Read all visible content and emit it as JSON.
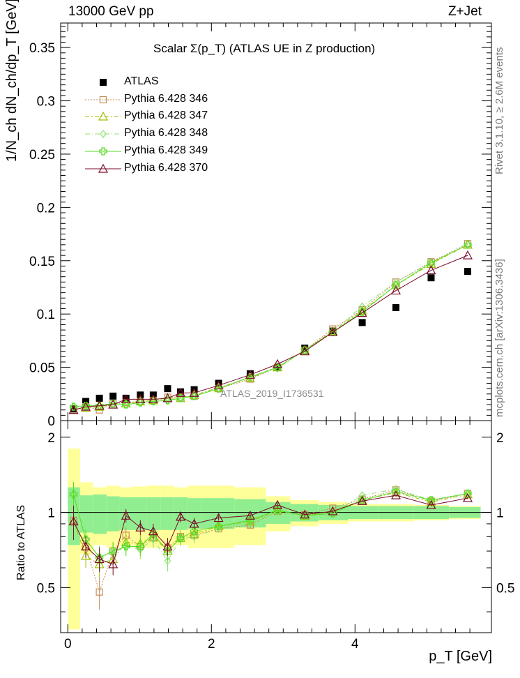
{
  "header": {
    "left": "13000 GeV pp",
    "right": "Z+Jet"
  },
  "side_labels": {
    "rivet": "Rivet 3.1.10, ≥ 2.6M events",
    "mcplots": "mcplots.cern.ch [arXiv:1306.3436]"
  },
  "watermark": "ATLAS_2019_I1736531",
  "chart_data": {
    "type": "scatter",
    "title": "Scalar Σ(p_T) (ATLAS UE in Z production)",
    "xlabel": "p_T [GeV]",
    "ylabel": "1/N_ch dN_ch/dp_T [GeV]",
    "ratio_ylabel": "Ratio to ATLAS",
    "xlim": [
      -0.1,
      5.9
    ],
    "ylim": [
      0,
      0.373
    ],
    "ratio_ylim": [
      0.33,
      2.33
    ],
    "grid": false,
    "legend_placement": "top-left",
    "x_ticks": [
      "0",
      "2",
      "4"
    ],
    "y_ticks": [
      "0",
      "0.05",
      "0.1",
      "0.15",
      "0.2",
      "0.25",
      "0.3",
      "0.35"
    ],
    "ratio_ticks": [
      "0.5",
      "1",
      "2"
    ],
    "x": [
      0.08,
      0.25,
      0.44,
      0.63,
      0.81,
      1.01,
      1.19,
      1.39,
      1.57,
      1.76,
      2.1,
      2.54,
      2.92,
      3.3,
      3.69,
      4.1,
      4.57,
      5.06,
      5.57
    ],
    "series": [
      {
        "name": "ATLAS",
        "color": "#000000",
        "marker": "square",
        "dash": "none",
        "values": [
          0.011,
          0.018,
          0.021,
          0.023,
          0.021,
          0.024,
          0.024,
          0.03,
          0.027,
          0.029,
          0.035,
          0.044,
          0.05,
          0.068,
          0.084,
          0.092,
          0.106,
          0.134,
          0.14
        ],
        "ratio": [
          1,
          1,
          1,
          1,
          1,
          1,
          1,
          1,
          1,
          1,
          1,
          1,
          1,
          1,
          1,
          1,
          1,
          1,
          1
        ]
      },
      {
        "name": "Pythia 6.428 346",
        "color": "#c68b55",
        "marker": "open-square",
        "dash": "2,2",
        "values": [
          0.01,
          0.013,
          0.01,
          0.016,
          0.017,
          0.018,
          0.019,
          0.022,
          0.022,
          0.023,
          0.03,
          0.039,
          0.05,
          0.066,
          0.086,
          0.104,
          0.13,
          0.149,
          0.166
        ],
        "ratio": [
          0.93,
          0.73,
          0.48,
          0.7,
          0.81,
          0.73,
          0.79,
          0.72,
          0.8,
          0.81,
          0.86,
          0.89,
          1.01,
          0.98,
          1.04,
          1.13,
          1.23,
          1.11,
          1.19
        ]
      },
      {
        "name": "Pythia 6.428 347",
        "color": "#9fbf00",
        "marker": "open-triangle",
        "dash": "6,3,2,3",
        "values": [
          0.01,
          0.012,
          0.013,
          0.015,
          0.016,
          0.018,
          0.019,
          0.021,
          0.021,
          0.024,
          0.031,
          0.04,
          0.05,
          0.066,
          0.084,
          0.103,
          0.127,
          0.147,
          0.165
        ],
        "ratio": [
          0.92,
          0.67,
          0.62,
          0.65,
          0.76,
          0.75,
          0.8,
          0.7,
          0.79,
          0.82,
          0.88,
          0.92,
          1.02,
          0.97,
          1.01,
          1.12,
          1.2,
          1.1,
          1.18
        ]
      },
      {
        "name": "Pythia 6.428 348",
        "color": "#8fe36e",
        "marker": "open-diamond",
        "dash": "7,3,1,3",
        "values": [
          0.013,
          0.014,
          0.014,
          0.016,
          0.015,
          0.017,
          0.018,
          0.019,
          0.021,
          0.023,
          0.03,
          0.041,
          0.049,
          0.066,
          0.083,
          0.107,
          0.13,
          0.148,
          0.165
        ],
        "ratio": [
          1.18,
          0.78,
          0.66,
          0.69,
          0.73,
          0.71,
          0.78,
          0.64,
          0.78,
          0.8,
          0.86,
          0.92,
          1.0,
          0.97,
          0.99,
          1.17,
          1.24,
          1.12,
          1.19
        ]
      },
      {
        "name": "Pythia 6.428 349",
        "color": "#55dd22",
        "marker": "open-cross",
        "dash": "none",
        "values": [
          0.013,
          0.014,
          0.014,
          0.016,
          0.015,
          0.017,
          0.018,
          0.019,
          0.021,
          0.023,
          0.03,
          0.041,
          0.05,
          0.066,
          0.083,
          0.102,
          0.127,
          0.148,
          0.165
        ],
        "ratio": [
          1.18,
          0.78,
          0.66,
          0.7,
          0.73,
          0.73,
          0.82,
          0.7,
          0.79,
          0.84,
          0.88,
          0.93,
          1.02,
          0.97,
          0.99,
          1.12,
          1.21,
          1.12,
          1.19
        ]
      },
      {
        "name": "Pythia 6.428 370",
        "color": "#7a0a28",
        "marker": "open-triangle",
        "dash": "none",
        "values": [
          0.01,
          0.013,
          0.014,
          0.015,
          0.02,
          0.02,
          0.02,
          0.021,
          0.026,
          0.026,
          0.033,
          0.043,
          0.053,
          0.065,
          0.083,
          0.101,
          0.122,
          0.141,
          0.155
        ],
        "ratio": [
          0.92,
          0.73,
          0.65,
          0.62,
          0.97,
          0.87,
          0.84,
          0.73,
          0.96,
          0.9,
          0.95,
          0.97,
          1.07,
          0.98,
          1.01,
          1.11,
          1.17,
          1.07,
          1.14
        ]
      }
    ],
    "ratio_errors": [
      0.12,
      0.06,
      0.06,
      0.05,
      0.05,
      0.05,
      0.05,
      0.05,
      0.04,
      0.04,
      0.02,
      0.02,
      0.02,
      0.02,
      0.01,
      0.01,
      0.01,
      0.01,
      0.01
    ],
    "band_edges": [
      0.0,
      0.17,
      0.35,
      0.54,
      0.72,
      0.9,
      1.1,
      1.29,
      1.48,
      1.67,
      1.86,
      2.32,
      2.76,
      3.1,
      3.49,
      3.9,
      4.33,
      4.82,
      5.31,
      5.75
    ],
    "band_inner": [
      0.26,
      0.17,
      0.18,
      0.16,
      0.15,
      0.15,
      0.15,
      0.15,
      0.15,
      0.14,
      0.14,
      0.13,
      0.1,
      0.08,
      0.07,
      0.06,
      0.06,
      0.06,
      0.05
    ],
    "band_outer": [
      0.8,
      0.32,
      0.26,
      0.28,
      0.26,
      0.27,
      0.28,
      0.28,
      0.26,
      0.28,
      0.28,
      0.26,
      0.16,
      0.12,
      0.1,
      0.08,
      0.08,
      0.07,
      0.06
    ]
  }
}
